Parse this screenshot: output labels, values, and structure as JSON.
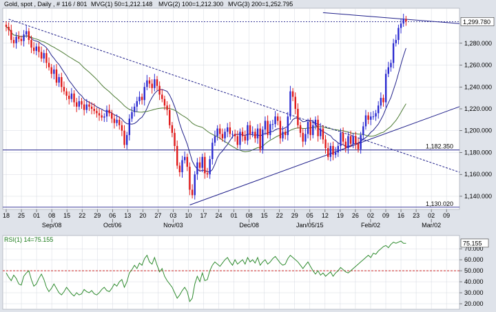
{
  "colors": {
    "background": "#dfe3ea",
    "panel": "#ffffff",
    "grid": "#d4d8e0",
    "bull": "#2a2ad0",
    "bear": "#e01818",
    "ma50": "#1f1f8a",
    "ma100": "#4b7a32",
    "trendline": "#1f1f8a",
    "rsi": "#2e8b2e",
    "rsi_level": "#cc2222"
  },
  "chart_data": [
    {
      "type": "candlestick",
      "title": "Gold, spot , Daily , # 116 / 801",
      "indicators": [
        {
          "label": "MVG(1) 50",
          "value": "1,212.148"
        },
        {
          "label": "MVG(2) 100",
          "value": "1,212.300"
        },
        {
          "label": "MVG(3) 200",
          "value": "1,252.795"
        }
      ],
      "ylim": [
        1128,
        1312
      ],
      "yticks": [
        1140,
        1160,
        1180,
        1200,
        1220,
        1240,
        1260,
        1280
      ],
      "ytick_labels": [
        "1,140.000",
        "1,160.000",
        "1,180.000",
        "1,200.000",
        "1,220.000",
        "1,240.000",
        "1,260.000",
        "1,280.000"
      ],
      "xtick_labels": [
        "18",
        "25",
        "01",
        "08",
        "15",
        "22",
        "29",
        "06",
        "13",
        "20",
        "27",
        "03",
        "10",
        "17",
        "24",
        "01",
        "08",
        "15",
        "22",
        "29",
        "05",
        "12",
        "19",
        "26",
        "02",
        "09",
        "16",
        "23",
        "02",
        "09"
      ],
      "month_labels": [
        {
          "label": "Sep/08",
          "tick": 3
        },
        {
          "label": "Oct/06",
          "tick": 7
        },
        {
          "label": "Nov/03",
          "tick": 11
        },
        {
          "label": "Dec/08",
          "tick": 16
        },
        {
          "label": "Jan/05/15",
          "tick": 20
        },
        {
          "label": "Feb/02",
          "tick": 24
        },
        {
          "label": "Mar/02",
          "tick": 28
        }
      ],
      "price_labels": [
        {
          "label": "1,299.780",
          "value": 1299.78,
          "style": "box"
        },
        {
          "label": "1,182.350",
          "value": 1182.35,
          "style": "plain"
        },
        {
          "label": "1,130.020",
          "value": 1130.02,
          "style": "plain"
        }
      ],
      "close": [
        1295,
        1292,
        1283,
        1280,
        1286,
        1284,
        1282,
        1288,
        1291,
        1283,
        1276,
        1273,
        1277,
        1272,
        1266,
        1271,
        1262,
        1258,
        1252,
        1256,
        1244,
        1249,
        1240,
        1236,
        1232,
        1229,
        1234,
        1226,
        1222,
        1227,
        1224,
        1219,
        1224,
        1222,
        1220,
        1218,
        1216,
        1214,
        1212,
        1213,
        1219,
        1216,
        1211,
        1207,
        1210,
        1205,
        1200,
        1187,
        1196,
        1211,
        1217,
        1222,
        1227,
        1231,
        1228,
        1240,
        1246,
        1243,
        1239,
        1247,
        1241,
        1233,
        1229,
        1223,
        1219,
        1205,
        1198,
        1186,
        1168,
        1162,
        1173,
        1176,
        1167,
        1146,
        1141,
        1160,
        1171,
        1166,
        1176,
        1161,
        1160,
        1174,
        1189,
        1195,
        1202,
        1197,
        1193,
        1199,
        1203,
        1197,
        1197,
        1195,
        1187,
        1199,
        1195,
        1191,
        1205,
        1197,
        1199,
        1193,
        1202,
        1183,
        1201,
        1209,
        1196,
        1206,
        1206,
        1213,
        1209,
        1193,
        1199,
        1196,
        1213,
        1236,
        1231,
        1220,
        1205,
        1198,
        1190,
        1197,
        1208,
        1196,
        1205,
        1210,
        1195,
        1202,
        1192,
        1184,
        1176,
        1186,
        1178,
        1180,
        1186,
        1198,
        1190,
        1184,
        1195,
        1188,
        1195,
        1188,
        1183,
        1196,
        1204,
        1214,
        1210,
        1213,
        1213,
        1216,
        1223,
        1230,
        1226,
        1252,
        1258,
        1262,
        1280,
        1283,
        1294,
        1298,
        1302,
        1300
      ]
    },
    {
      "type": "line",
      "title": "RSI(1) 14=75.155",
      "current_label": "75.155",
      "ylim": [
        15,
        82
      ],
      "yticks": [
        20,
        30,
        40,
        50,
        60,
        70
      ],
      "ytick_labels": [
        "20.000",
        "30.000",
        "40.000",
        "50.000",
        "60.000",
        "70.000"
      ],
      "level": 50,
      "values": [
        48,
        44,
        41,
        46,
        43,
        38,
        37,
        45,
        48,
        50,
        42,
        36,
        38,
        43,
        47,
        42,
        35,
        31,
        34,
        38,
        34,
        30,
        28,
        31,
        35,
        32,
        29,
        27,
        30,
        28,
        29,
        33,
        31,
        30,
        32,
        29,
        28,
        30,
        33,
        35,
        32,
        31,
        34,
        38,
        36,
        40,
        42,
        35,
        40,
        48,
        51,
        55,
        52,
        57,
        55,
        61,
        64,
        58,
        56,
        62,
        55,
        49,
        52,
        45,
        41,
        38,
        35,
        30,
        25,
        28,
        32,
        35,
        31,
        22,
        25,
        38,
        45,
        40,
        48,
        41,
        42,
        50,
        55,
        58,
        56,
        54,
        57,
        60,
        62,
        58,
        55,
        60,
        56,
        58,
        60,
        56,
        62,
        58,
        60,
        57,
        62,
        55,
        58,
        60,
        56,
        58,
        61,
        63,
        60,
        57,
        55,
        56,
        61,
        64,
        62,
        60,
        58,
        55,
        52,
        55,
        58,
        54,
        50,
        47,
        50,
        46,
        48,
        45,
        47,
        49,
        45,
        48,
        50,
        53,
        51,
        49,
        48,
        50,
        52,
        54,
        56,
        58,
        60,
        62,
        64,
        62,
        66,
        65,
        68,
        70,
        72,
        73,
        71,
        74,
        76,
        75,
        76,
        77,
        75,
        75
      ]
    }
  ]
}
